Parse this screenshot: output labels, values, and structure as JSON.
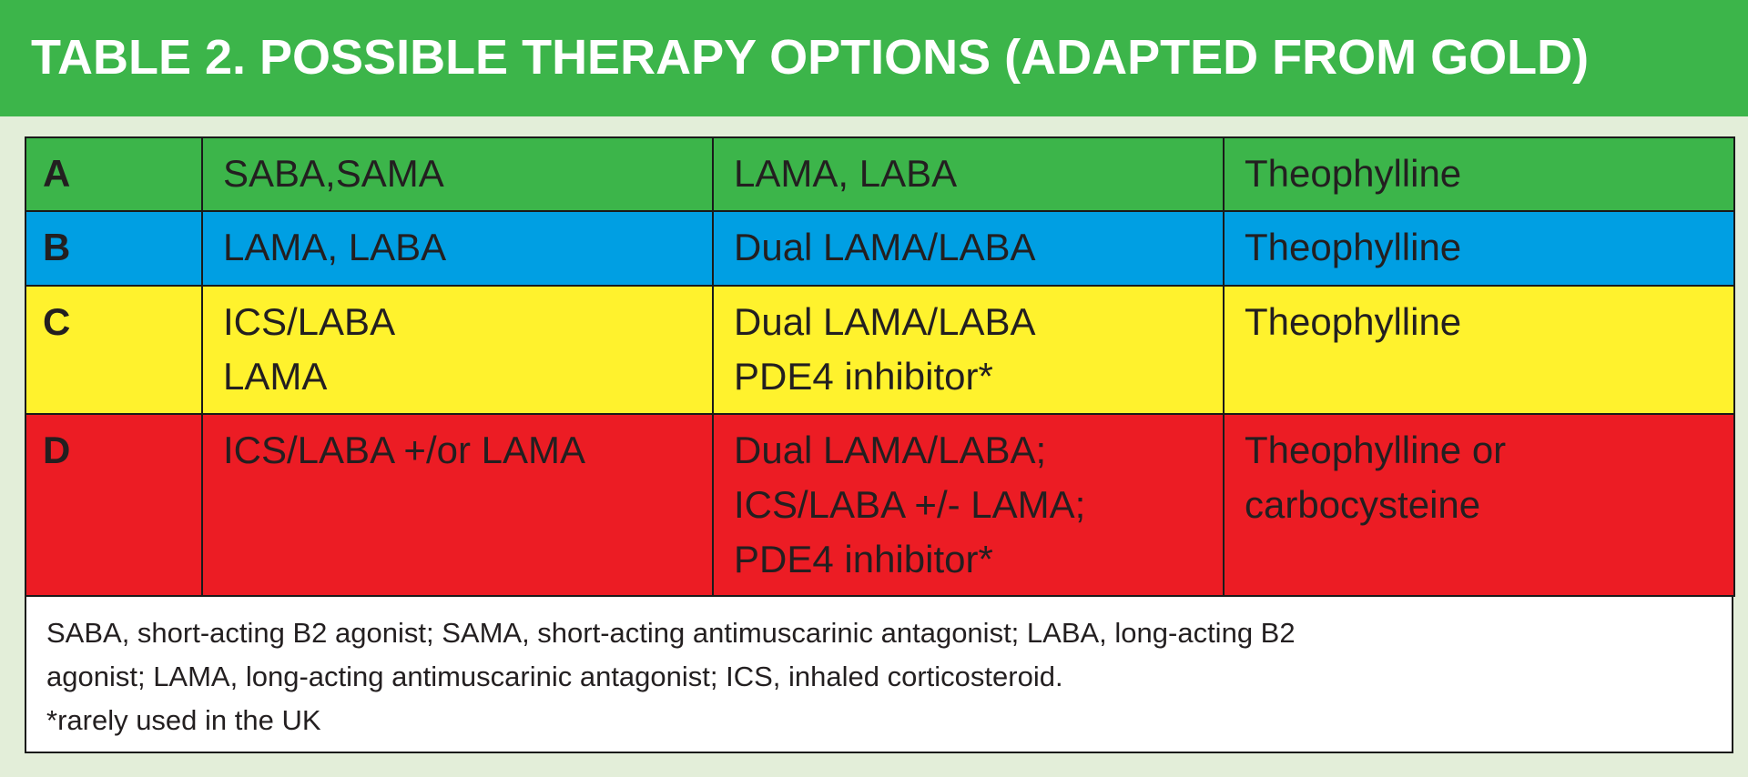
{
  "title": "TABLE 2. POSSIBLE THERAPY OPTIONS (ADAPTED FROM GOLD)",
  "colors": {
    "header_green": "#3cb54a",
    "row_a": "#3cb54a",
    "row_b": "#009fe3",
    "row_c": "#fff22d",
    "row_d": "#ec1c24",
    "background": "#e3eed9"
  },
  "rows": [
    {
      "group": "A",
      "col1": [
        "SABA,SAMA"
      ],
      "col2": [
        "LAMA, LABA"
      ],
      "col3": [
        "Theophylline"
      ]
    },
    {
      "group": "B",
      "col1": [
        "LAMA, LABA"
      ],
      "col2": [
        "Dual LAMA/LABA"
      ],
      "col3": [
        "Theophylline"
      ]
    },
    {
      "group": "C",
      "col1": [
        "ICS/LABA",
        "LAMA"
      ],
      "col2": [
        "Dual LAMA/LABA",
        "PDE4 inhibitor*"
      ],
      "col3": [
        "Theophylline"
      ]
    },
    {
      "group": "D",
      "col1": [
        "ICS/LABA +/or LAMA"
      ],
      "col2": [
        "Dual LAMA/LABA;",
        "ICS/LABA +/- LAMA;",
        "PDE4 inhibitor*"
      ],
      "col3": [
        "Theophylline or",
        "carbocysteine"
      ]
    }
  ],
  "footnote": {
    "line1": "SABA, short-acting B2 agonist; SAMA, short-acting antimuscarinic antagonist; LABA, long-acting B2",
    "line2": "agonist; LAMA, long-acting antimuscarinic antagonist; ICS, inhaled corticosteroid.",
    "line3": "*rarely used in the UK"
  }
}
